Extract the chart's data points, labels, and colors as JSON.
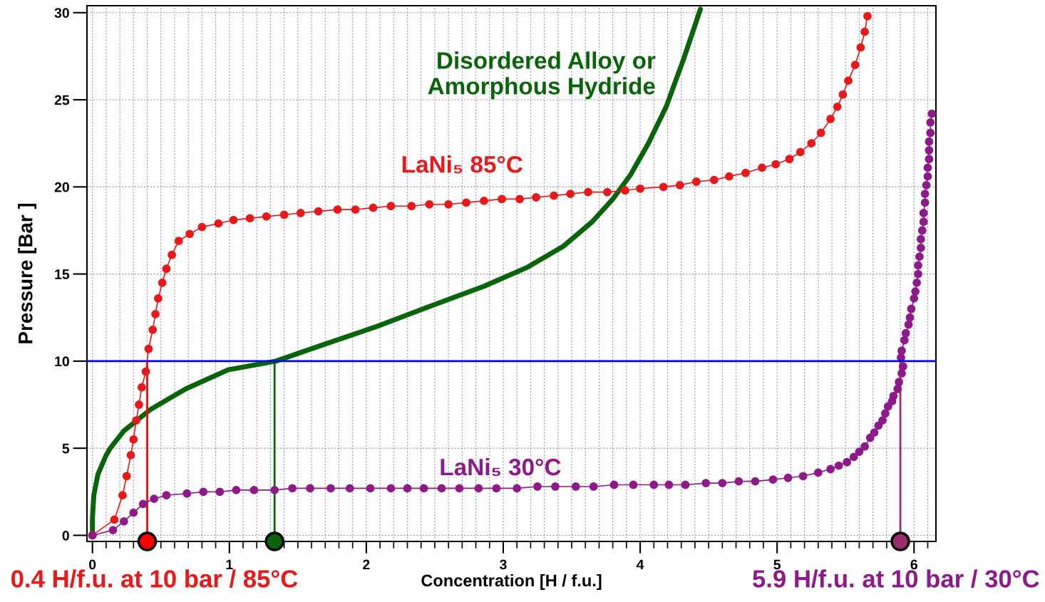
{
  "chart_data": {
    "type": "line",
    "xlabel": "Concentration [H / f.u.]",
    "ylabel": "Pressure [Bar ]",
    "xlim": [
      -0.04,
      6.16
    ],
    "ylim": [
      -0.35,
      30.4
    ],
    "xticks": [
      0,
      1,
      2,
      3,
      4,
      5,
      6
    ],
    "yticks": [
      0,
      5,
      10,
      15,
      20,
      25,
      30
    ],
    "grid": true,
    "legend": false,
    "series": [
      {
        "name": "LaNi₅ 85°C",
        "color": "#e8191a",
        "marker": "circle",
        "x": [
          0,
          0.16,
          0.22,
          0.25,
          0.28,
          0.3,
          0.32,
          0.34,
          0.36,
          0.39,
          0.41,
          0.44,
          0.46,
          0.48,
          0.51,
          0.54,
          0.58,
          0.63,
          0.71,
          0.8,
          0.92,
          1.03,
          1.15,
          1.27,
          1.4,
          1.52,
          1.65,
          1.79,
          1.92,
          2.05,
          2.18,
          2.33,
          2.46,
          2.6,
          2.73,
          2.86,
          2.99,
          3.12,
          3.24,
          3.37,
          3.49,
          3.62,
          3.76,
          3.89,
          4.0,
          4.17,
          4.29,
          4.41,
          4.54,
          4.65,
          4.77,
          4.89,
          4.99,
          5.09,
          5.17,
          5.25,
          5.32,
          5.39,
          5.44,
          5.48,
          5.52,
          5.57,
          5.61,
          5.64,
          5.66
        ],
        "values": [
          0,
          0.9,
          2.3,
          3.4,
          4.6,
          5.5,
          6.6,
          7.5,
          8.5,
          9.4,
          10.7,
          11.8,
          12.7,
          13.6,
          14.5,
          15.3,
          16.1,
          16.9,
          17.3,
          17.7,
          17.9,
          18.1,
          18.2,
          18.3,
          18.4,
          18.5,
          18.6,
          18.7,
          18.7,
          18.8,
          18.9,
          18.9,
          19.0,
          19.0,
          19.1,
          19.2,
          19.3,
          19.3,
          19.4,
          19.5,
          19.6,
          19.7,
          19.7,
          19.8,
          19.9,
          20.0,
          20.1,
          20.3,
          20.4,
          20.6,
          20.8,
          21.1,
          21.3,
          21.6,
          22.0,
          22.5,
          23.1,
          23.9,
          24.6,
          25.3,
          26.1,
          27.0,
          28.0,
          28.9,
          29.8
        ]
      },
      {
        "name": "LaNi₅ 30°C",
        "color": "#8e1a8a",
        "marker": "circle",
        "x": [
          0,
          0.15,
          0.23,
          0.3,
          0.37,
          0.45,
          0.54,
          0.69,
          0.81,
          0.93,
          1.05,
          1.18,
          1.33,
          1.46,
          1.59,
          1.74,
          1.88,
          2.03,
          2.18,
          2.3,
          2.42,
          2.55,
          2.68,
          2.82,
          2.95,
          3.1,
          3.25,
          3.38,
          3.53,
          3.66,
          3.81,
          3.95,
          4.1,
          4.21,
          4.33,
          4.48,
          4.6,
          4.72,
          4.84,
          4.97,
          5.08,
          5.19,
          5.3,
          5.39,
          5.45,
          5.51,
          5.56,
          5.6,
          5.64,
          5.68,
          5.71,
          5.74,
          5.77,
          5.79,
          5.81,
          5.84,
          5.85,
          5.88,
          5.89,
          5.91,
          5.92,
          5.905,
          5.91,
          5.93,
          5.94,
          5.96,
          5.97,
          5.98,
          6.0,
          6.01,
          6.02,
          6.03,
          6.03,
          6.04,
          6.05,
          6.05,
          6.06,
          6.07,
          6.07,
          6.08,
          6.08,
          6.09,
          6.1,
          6.1,
          6.11,
          6.11,
          6.11,
          6.12,
          6.12,
          6.13
        ],
        "values": [
          0,
          0.3,
          0.8,
          1.3,
          1.8,
          2.1,
          2.3,
          2.4,
          2.5,
          2.5,
          2.6,
          2.6,
          2.6,
          2.7,
          2.7,
          2.7,
          2.7,
          2.7,
          2.7,
          2.7,
          2.7,
          2.7,
          2.7,
          2.7,
          2.7,
          2.7,
          2.8,
          2.8,
          2.8,
          2.8,
          2.9,
          2.9,
          2.9,
          2.9,
          2.9,
          3.0,
          3.0,
          3.1,
          3.1,
          3.2,
          3.3,
          3.4,
          3.6,
          3.8,
          4.0,
          4.2,
          4.5,
          4.8,
          5.1,
          5.6,
          5.9,
          6.3,
          6.6,
          7.0,
          7.4,
          7.7,
          8.0,
          8.4,
          8.8,
          9.3,
          9.7,
          10.2,
          10.6,
          11.2,
          11.6,
          12.1,
          12.5,
          13.0,
          13.6,
          14.0,
          14.5,
          15.0,
          15.5,
          16.0,
          16.5,
          17.0,
          17.5,
          18.0,
          18.5,
          19.1,
          19.6,
          20.1,
          20.6,
          21.1,
          21.6,
          22.1,
          22.6,
          23.1,
          23.7,
          24.2
        ]
      },
      {
        "name": "Disordered Alloy or\nAmorphous Hydride",
        "color": "#0a640a",
        "marker": "none",
        "x": [
          0,
          0,
          0.01,
          0.04,
          0.1,
          0.13,
          0.23,
          0.42,
          0.68,
          0.99,
          1.34,
          1.67,
          2.08,
          2.45,
          2.86,
          3.18,
          3.44,
          3.65,
          3.8,
          3.93,
          4.06,
          4.19,
          4.32,
          4.44
        ],
        "values": [
          0,
          1.0,
          2.3,
          3.5,
          4.6,
          5.0,
          6.0,
          7.2,
          8.4,
          9.5,
          10.0,
          10.9,
          12.0,
          13.1,
          14.3,
          15.4,
          16.6,
          18.0,
          19.3,
          20.7,
          22.5,
          24.6,
          27.4,
          30.2
        ]
      },
      {
        "color": "#ff0000",
        "type": "line",
        "marker": "none",
        "x": [
          0.4,
          0.4
        ],
        "values": [
          -0.35,
          10
        ]
      },
      {
        "color": "#0a640a",
        "type": "line",
        "marker": "none",
        "x": [
          1.33,
          1.33
        ],
        "values": [
          -0.35,
          10
        ]
      },
      {
        "color": "#9b2d6e",
        "type": "line",
        "marker": "none",
        "x": [
          5.9,
          5.9
        ],
        "values": [
          -0.35,
          10
        ]
      },
      {
        "color": "#ff0000",
        "type": "scatter",
        "marker": "circle",
        "x": [
          0.4
        ],
        "values": [
          -0.35
        ]
      },
      {
        "color": "#0a640a",
        "type": "scatter",
        "marker": "circle",
        "x": [
          1.33
        ],
        "values": [
          -0.35
        ]
      },
      {
        "color": "#9b2d6e",
        "type": "scatter",
        "marker": "circle",
        "x": [
          5.9
        ],
        "values": [
          -0.35
        ]
      }
    ],
    "ref_lines": [
      {
        "axis": "y",
        "value": 10,
        "color": "#0000ff"
      }
    ],
    "annotations": [
      "0.4 H/f.u. at 10 bar / 85°C",
      "5.9 H/f.u. at 10 bar / 30°C"
    ]
  }
}
